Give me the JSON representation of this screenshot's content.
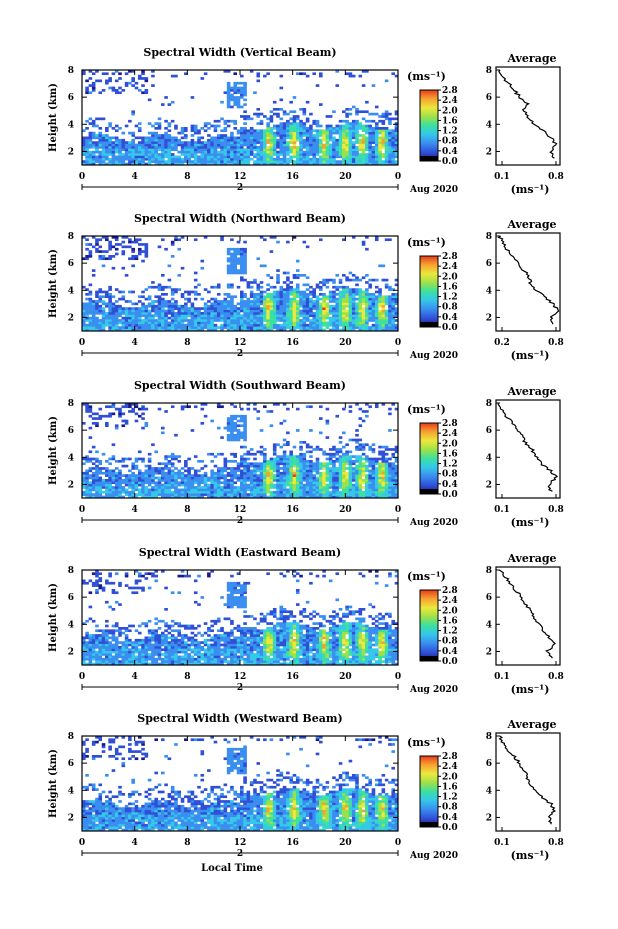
{
  "chart_data": [
    {
      "type": "heatmap",
      "title": "Spectral Width (Vertical Beam)",
      "ylabel": "Height (km)",
      "xlabel": "",
      "x_ticks": [
        "0",
        "4",
        "8",
        "12",
        "16",
        "20",
        "0"
      ],
      "y_ticks": [
        "2",
        "4",
        "6",
        "8"
      ],
      "xlim": [
        0,
        24
      ],
      "ylim": [
        1,
        8
      ],
      "day_label": "2",
      "date_label": "Aug 2020",
      "colorbar": {
        "unit": "(ms⁻¹)",
        "ticks": [
          "2.8",
          "2.4",
          "2.0",
          "1.6",
          "1.2",
          "0.8",
          "0.4",
          "0.0"
        ],
        "range": [
          0,
          2.8
        ]
      },
      "profile": {
        "title": "Average",
        "xlabel": "(ms⁻¹)",
        "x_ticks": [
          "0.1",
          "0.8"
        ],
        "xlim": [
          0.1,
          0.8
        ],
        "y_ticks": [
          "2",
          "4",
          "6",
          "8"
        ],
        "ylim": [
          1,
          8
        ],
        "heights": [
          1.5,
          2.0,
          2.5,
          3.0,
          3.5,
          4.0,
          4.5,
          5.0,
          5.5,
          6.0,
          6.5,
          7.0,
          7.5,
          8.0
        ],
        "values": [
          0.72,
          0.7,
          0.76,
          0.7,
          0.62,
          0.52,
          0.46,
          0.4,
          0.44,
          0.36,
          0.3,
          0.24,
          0.18,
          0.14
        ]
      }
    },
    {
      "type": "heatmap",
      "title": "Spectral Width (Northward Beam)",
      "ylabel": "Height (km)",
      "xlabel": "",
      "x_ticks": [
        "0",
        "4",
        "8",
        "12",
        "16",
        "20",
        "0"
      ],
      "y_ticks": [
        "2",
        "4",
        "6",
        "8"
      ],
      "xlim": [
        0,
        24
      ],
      "ylim": [
        1,
        8
      ],
      "day_label": "2",
      "date_label": "Aug 2020",
      "colorbar": {
        "unit": "(ms⁻¹)",
        "ticks": [
          "2.8",
          "2.4",
          "2.0",
          "1.6",
          "1.2",
          "0.8",
          "0.4",
          "0.0"
        ],
        "range": [
          0,
          2.8
        ]
      },
      "profile": {
        "title": "Average",
        "xlabel": "(ms⁻¹)",
        "x_ticks": [
          "0.2",
          "0.8"
        ],
        "xlim": [
          0.1,
          0.8
        ],
        "y_ticks": [
          "2",
          "4",
          "6",
          "8"
        ],
        "ylim": [
          1,
          8
        ],
        "heights": [
          1.5,
          2.0,
          2.5,
          3.0,
          3.5,
          4.0,
          4.5,
          5.0,
          5.5,
          6.0,
          6.5,
          7.0,
          7.5,
          8.0
        ],
        "values": [
          0.74,
          0.7,
          0.78,
          0.72,
          0.64,
          0.54,
          0.48,
          0.46,
          0.4,
          0.34,
          0.28,
          0.22,
          0.18,
          0.14
        ]
      }
    },
    {
      "type": "heatmap",
      "title": "Spectral Width (Southward Beam)",
      "ylabel": "Height (km)",
      "xlabel": "",
      "x_ticks": [
        "0",
        "4",
        "8",
        "12",
        "16",
        "20",
        "0"
      ],
      "y_ticks": [
        "2",
        "4",
        "6",
        "8"
      ],
      "xlim": [
        0,
        24
      ],
      "ylim": [
        1,
        8
      ],
      "day_label": "2",
      "date_label": "Aug 2020",
      "colorbar": {
        "unit": "(ms⁻¹)",
        "ticks": [
          "2.8",
          "2.4",
          "2.0",
          "1.6",
          "1.2",
          "0.8",
          "0.4",
          "0.0"
        ],
        "range": [
          0,
          2.8
        ]
      },
      "profile": {
        "title": "Average",
        "xlabel": "(ms⁻¹)",
        "x_ticks": [
          "0.1",
          "0.8"
        ],
        "xlim": [
          0.1,
          0.8
        ],
        "y_ticks": [
          "2",
          "4",
          "6",
          "8"
        ],
        "ylim": [
          1,
          8
        ],
        "heights": [
          1.5,
          2.0,
          2.5,
          3.0,
          3.5,
          4.0,
          4.5,
          5.0,
          5.5,
          6.0,
          6.5,
          7.0,
          7.5,
          8.0
        ],
        "values": [
          0.7,
          0.68,
          0.76,
          0.7,
          0.6,
          0.54,
          0.5,
          0.42,
          0.4,
          0.34,
          0.28,
          0.22,
          0.16,
          0.13
        ]
      }
    },
    {
      "type": "heatmap",
      "title": "Spectral Width (Eastward Beam)",
      "ylabel": "Height (km)",
      "xlabel": "",
      "x_ticks": [
        "0",
        "4",
        "8",
        "12",
        "16",
        "20",
        "0"
      ],
      "y_ticks": [
        "2",
        "4",
        "6",
        "8"
      ],
      "xlim": [
        0,
        24
      ],
      "ylim": [
        1,
        8
      ],
      "day_label": "2",
      "date_label": "Aug 2020",
      "colorbar": {
        "unit": "(ms⁻¹)",
        "ticks": [
          "2.8",
          "2.4",
          "2.0",
          "1.6",
          "1.2",
          "0.8",
          "0.4",
          "0.0"
        ],
        "range": [
          0,
          2.8
        ]
      },
      "profile": {
        "title": "Average",
        "xlabel": "(ms⁻¹)",
        "x_ticks": [
          "0.1",
          "0.8"
        ],
        "xlim": [
          0.1,
          0.8
        ],
        "y_ticks": [
          "2",
          "4",
          "6",
          "8"
        ],
        "ylim": [
          1,
          8
        ],
        "heights": [
          1.5,
          2.0,
          2.5,
          3.0,
          3.5,
          4.0,
          4.5,
          5.0,
          5.5,
          6.0,
          6.5,
          7.0,
          7.5,
          8.0
        ],
        "values": [
          0.72,
          0.66,
          0.74,
          0.68,
          0.62,
          0.58,
          0.52,
          0.48,
          0.42,
          0.38,
          0.32,
          0.26,
          0.2,
          0.15
        ]
      }
    },
    {
      "type": "heatmap",
      "title": "Spectral Width (Westward Beam)",
      "ylabel": "Height (km)",
      "xlabel": "Local Time",
      "x_ticks": [
        "0",
        "4",
        "8",
        "12",
        "16",
        "20",
        "0"
      ],
      "y_ticks": [
        "2",
        "4",
        "6",
        "8"
      ],
      "xlim": [
        0,
        24
      ],
      "ylim": [
        1,
        8
      ],
      "day_label": "2",
      "date_label": "Aug 2020",
      "colorbar": {
        "unit": "(ms⁻¹)",
        "ticks": [
          "2.8",
          "2.4",
          "2.0",
          "1.6",
          "1.2",
          "0.8",
          "0.4",
          "0.0"
        ],
        "range": [
          0,
          2.8
        ]
      },
      "profile": {
        "title": "Average",
        "xlabel": "(ms⁻¹)",
        "x_ticks": [
          "0.1",
          "0.8"
        ],
        "xlim": [
          0.1,
          0.8
        ],
        "y_ticks": [
          "2",
          "4",
          "6",
          "8"
        ],
        "ylim": [
          1,
          8
        ],
        "heights": [
          1.5,
          2.0,
          2.5,
          3.0,
          3.5,
          4.0,
          4.5,
          5.0,
          5.5,
          6.0,
          6.5,
          7.0,
          7.5,
          8.0
        ],
        "values": [
          0.7,
          0.68,
          0.74,
          0.7,
          0.6,
          0.52,
          0.46,
          0.44,
          0.4,
          0.36,
          0.3,
          0.22,
          0.18,
          0.14
        ]
      }
    }
  ],
  "colormap": [
    "#1a1a8c",
    "#2f4fd6",
    "#3a8ef0",
    "#35c8e8",
    "#3ce0a0",
    "#9ce04a",
    "#ece83c",
    "#f6a030",
    "#e83a1c"
  ]
}
